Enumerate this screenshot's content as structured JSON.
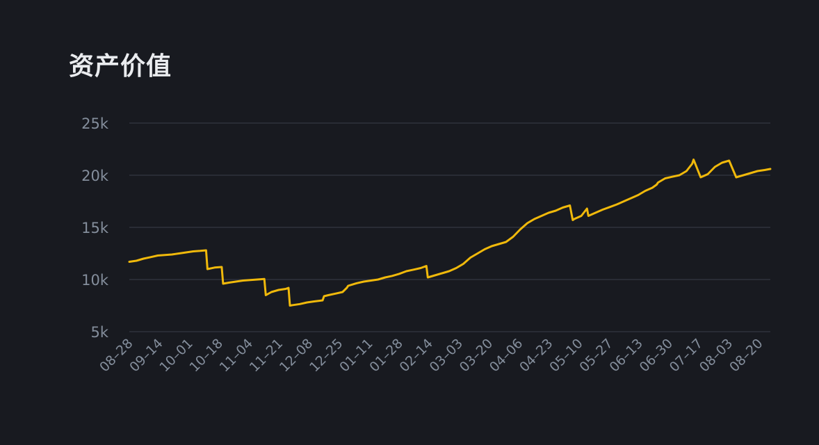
{
  "title": "资产价值",
  "colors": {
    "background": "#181a20",
    "grid": "#2f333c",
    "line": "#f0b90b",
    "tick": "#848e9c",
    "title": "#eaecef"
  },
  "chart_data": {
    "type": "line",
    "title": "资产价值",
    "xlabel": "",
    "ylabel": "",
    "ylim": [
      5000,
      25000
    ],
    "yticks": [
      5000,
      10000,
      15000,
      20000,
      25000
    ],
    "ytick_labels": [
      "5k",
      "10k",
      "15k",
      "20k",
      "25k"
    ],
    "xtick_labels": [
      "08–28",
      "09–14",
      "10–01",
      "10–18",
      "11–04",
      "11–21",
      "12–08",
      "12–25",
      "01–11",
      "01–28",
      "02–14",
      "03–03",
      "03–20",
      "04–06",
      "04–23",
      "05–10",
      "05–27",
      "06–13",
      "06–30",
      "07–17",
      "08–03",
      "08–20"
    ],
    "grid": true,
    "legend": "none",
    "series": [
      {
        "x": [
          0,
          5,
          10,
          15,
          20,
          25,
          30,
          35,
          40,
          45,
          50,
          54,
          55,
          60,
          65,
          66,
          70,
          75,
          80,
          85,
          90,
          95,
          96,
          100,
          105,
          110,
          112,
          113,
          115,
          120,
          125,
          130,
          136,
          137,
          140,
          145,
          150,
          153,
          154,
          160,
          165,
          170,
          175,
          180,
          185,
          190,
          195,
          200,
          205,
          209,
          210,
          215,
          220,
          225,
          230,
          235,
          240,
          245,
          250,
          255,
          260,
          265,
          270,
          275,
          280,
          285,
          290,
          295,
          300,
          305,
          310,
          312,
          313,
          318,
          322,
          323,
          328,
          333,
          338,
          343,
          348,
          353,
          358,
          363,
          368,
          371,
          372,
          377,
          382,
          387,
          392,
          396,
          397,
          402,
          407,
          412,
          417,
          422,
          427,
          432,
          437,
          442,
          447,
          451
        ],
        "values": [
          11700,
          11800,
          12000,
          12150,
          12300,
          12350,
          12400,
          12500,
          12600,
          12700,
          12750,
          12800,
          11000,
          11150,
          11200,
          9600,
          9700,
          9800,
          9900,
          9950,
          10000,
          10050,
          8500,
          8800,
          9000,
          9100,
          9200,
          7500,
          7550,
          7650,
          7800,
          7900,
          8000,
          8400,
          8500,
          8650,
          8800,
          9200,
          9400,
          9650,
          9800,
          9900,
          10000,
          10200,
          10350,
          10550,
          10800,
          10950,
          11100,
          11300,
          10200,
          10400,
          10600,
          10800,
          11100,
          11500,
          12100,
          12500,
          12900,
          13200,
          13400,
          13600,
          14100,
          14800,
          15400,
          15800,
          16100,
          16400,
          16600,
          16900,
          17100,
          15700,
          15800,
          16100,
          16800,
          16100,
          16400,
          16700,
          16950,
          17200,
          17500,
          17800,
          18100,
          18500,
          18800,
          19100,
          19300,
          19700,
          19850,
          20000,
          20400,
          21100,
          21500,
          19800,
          20100,
          20800,
          21200,
          21400,
          19800,
          20000,
          20200,
          20400,
          20500,
          20600
        ]
      }
    ]
  }
}
